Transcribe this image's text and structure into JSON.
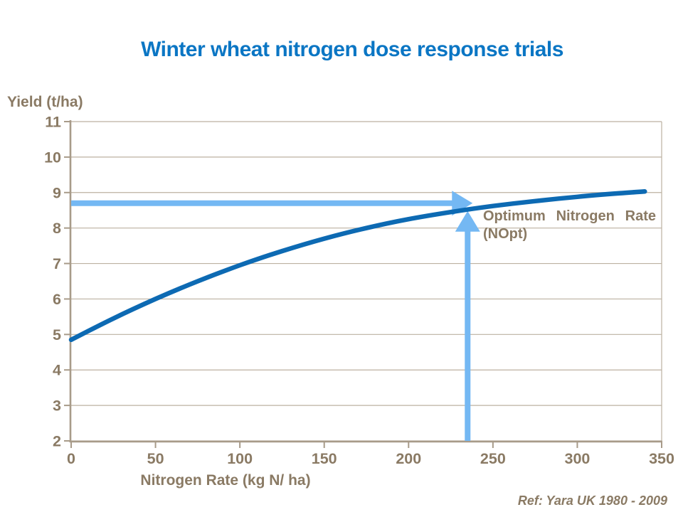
{
  "title": "Winter wheat nitrogen dose response trials",
  "y_axis": {
    "label": "Yield (t/ha)",
    "ticks": [
      11,
      10,
      9,
      8,
      7,
      6,
      5,
      4,
      3,
      2
    ]
  },
  "x_axis": {
    "label": "Nitrogen Rate (kg N/ ha)",
    "ticks": [
      0,
      50,
      100,
      150,
      200,
      250,
      300,
      350
    ]
  },
  "annotation": {
    "line1": "Optimum Nitrogen Rate",
    "line2": "(NOpt)"
  },
  "reference": "Ref: Yara UK 1980 - 2009",
  "colors": {
    "title_blue": "#0b76c4",
    "curve_blue": "#0d6ab3",
    "arrow_blue": "#74b8f3",
    "text_brown": "#8a7a64",
    "axis_taupe": "#a89b89",
    "gridline_taupe": "#bcb1a1",
    "background": "#ffffff"
  },
  "chart_data": {
    "type": "line",
    "title": "Winter wheat nitrogen dose response trials",
    "xlabel": "Nitrogen Rate (kg N/ ha)",
    "ylabel": "Yield (t/ha)",
    "xlim": [
      0,
      350
    ],
    "ylim": [
      2,
      11
    ],
    "grid": "horizontal",
    "legend": "none",
    "x": [
      0,
      25,
      50,
      75,
      100,
      125,
      150,
      175,
      200,
      225,
      250,
      275,
      300,
      325,
      340
    ],
    "yield": [
      4.85,
      5.45,
      6.0,
      6.5,
      6.95,
      7.35,
      7.7,
      8.0,
      8.25,
      8.45,
      8.62,
      8.76,
      8.88,
      8.98,
      9.03
    ],
    "optimum": {
      "x": 235,
      "arrow_yield": 8.7,
      "vertical_tip_yield": 8.48,
      "label": "Optimum Nitrogen Rate (NOpt)"
    },
    "source": "Ref: Yara UK 1980 - 2009"
  }
}
